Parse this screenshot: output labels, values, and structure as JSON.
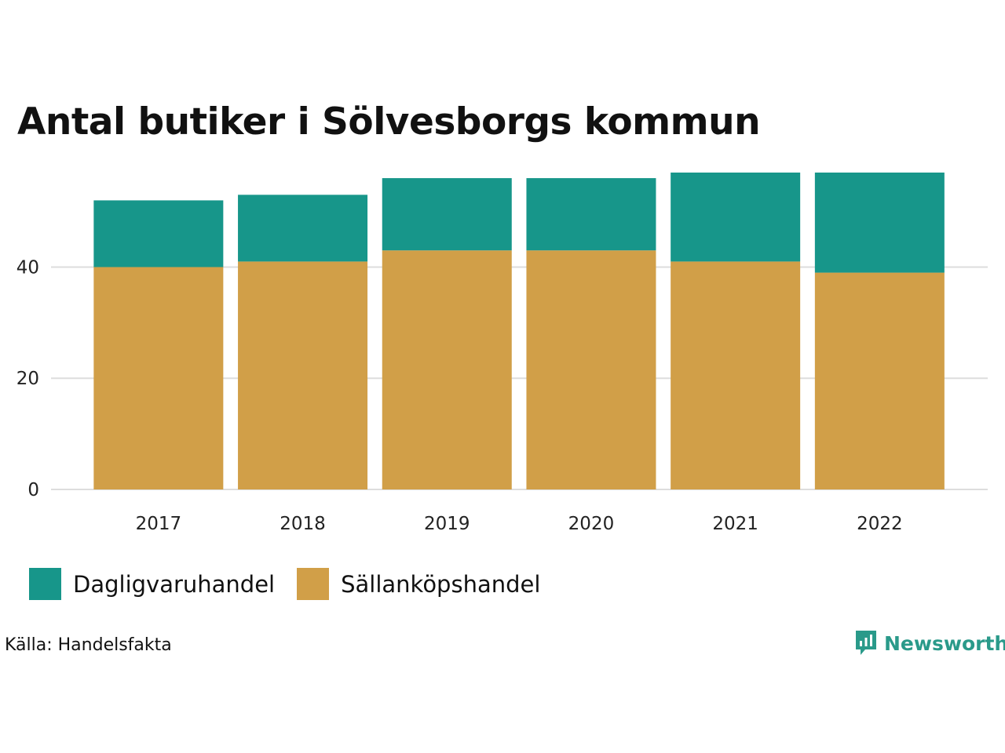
{
  "title": "Antal butiker i Sölvesborgs kommun",
  "source": "Källa: Handelsfakta",
  "brand": {
    "name": "Newsworthy",
    "icon": "newsworthy-logo-icon"
  },
  "colors": {
    "dagligvaruhandel": "#17968a",
    "sallankopshandel": "#d19f48",
    "grid": "#dddddd"
  },
  "legend": [
    {
      "label": "Dagligvaruhandel",
      "color": "#17968a"
    },
    {
      "label": "Sällanköpshandel",
      "color": "#d19f48"
    }
  ],
  "chart_data": {
    "type": "bar",
    "stacked": true,
    "title": "Antal butiker i Sölvesborgs kommun",
    "categories": [
      "2017",
      "2018",
      "2019",
      "2020",
      "2021",
      "2022"
    ],
    "series": [
      {
        "name": "Sällanköpshandel",
        "values": [
          40,
          41,
          43,
          43,
          41,
          39
        ],
        "color": "#d19f48"
      },
      {
        "name": "Dagligvaruhandel",
        "values": [
          12,
          12,
          13,
          13,
          16,
          18
        ],
        "color": "#17968a"
      }
    ],
    "yticks": [
      0,
      20,
      40
    ],
    "ylim": [
      0,
      57
    ],
    "xlabel": "",
    "ylabel": "",
    "grid": true,
    "legend": "bottom-left"
  }
}
